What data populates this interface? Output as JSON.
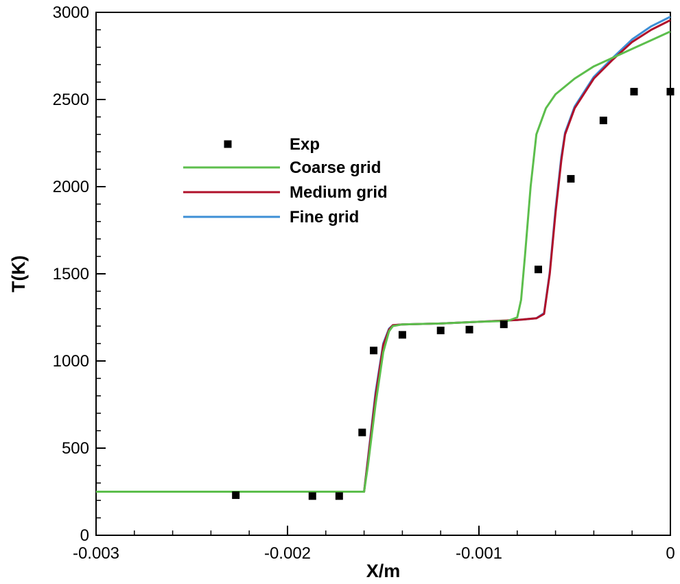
{
  "chart_data": {
    "type": "line",
    "title": "",
    "xlabel": "X/m",
    "ylabel": "T(K)",
    "xlim": [
      -0.003,
      0
    ],
    "ylim": [
      0,
      3000
    ],
    "x_ticks": [
      -0.003,
      -0.002,
      -0.001,
      0
    ],
    "x_tick_labels": [
      "-0.003",
      "-0.002",
      "-0.001",
      "0"
    ],
    "y_ticks": [
      0,
      500,
      1000,
      1500,
      2000,
      2500,
      3000
    ],
    "y_tick_labels": [
      "0",
      "500",
      "1000",
      "1500",
      "2000",
      "2500",
      "3000"
    ],
    "grid": false,
    "legend_position": "upper-left-center",
    "series": [
      {
        "name": "Exp",
        "kind": "scatter",
        "color": "#000000",
        "x": [
          -0.00227,
          -0.00187,
          -0.00173,
          -0.00161,
          -0.00155,
          -0.0014,
          -0.0012,
          -0.00105,
          -0.00087,
          -0.00069,
          -0.00052,
          -0.00035,
          -0.00019,
          0.0
        ],
        "y": [
          230,
          225,
          225,
          590,
          1060,
          1150,
          1175,
          1180,
          1210,
          1525,
          2045,
          2380,
          2545,
          2545
        ]
      },
      {
        "name": "Coarse grid",
        "kind": "line",
        "color": "#5cbe4c",
        "x": [
          -0.003,
          -0.0016,
          -0.00158,
          -0.00154,
          -0.0015,
          -0.00147,
          -0.00145,
          -0.0014,
          -0.0012,
          -0.001,
          -0.00085,
          -0.0008,
          -0.00078,
          -0.00076,
          -0.00073,
          -0.0007,
          -0.00065,
          -0.0006,
          -0.0005,
          -0.0004,
          -0.0003,
          -0.0002,
          -0.0001,
          0.0
        ],
        "y": [
          250,
          250,
          400,
          750,
          1050,
          1170,
          1200,
          1210,
          1215,
          1225,
          1230,
          1250,
          1350,
          1600,
          2000,
          2300,
          2450,
          2530,
          2620,
          2690,
          2740,
          2790,
          2840,
          2890
        ]
      },
      {
        "name": "Medium grid",
        "kind": "line",
        "color": "#b0102a",
        "x": [
          -0.003,
          -0.0016,
          -0.00158,
          -0.00154,
          -0.0015,
          -0.00147,
          -0.00145,
          -0.0014,
          -0.0012,
          -0.001,
          -0.0008,
          -0.0007,
          -0.00066,
          -0.00063,
          -0.0006,
          -0.00057,
          -0.00055,
          -0.0005,
          -0.0004,
          -0.0003,
          -0.0002,
          -0.0001,
          0.0
        ],
        "y": [
          250,
          250,
          430,
          800,
          1090,
          1180,
          1205,
          1210,
          1215,
          1225,
          1235,
          1245,
          1270,
          1500,
          1850,
          2150,
          2300,
          2450,
          2620,
          2730,
          2830,
          2900,
          2955
        ]
      },
      {
        "name": "Fine grid",
        "kind": "line",
        "color": "#3d8fd6",
        "x": [
          -0.003,
          -0.0016,
          -0.00158,
          -0.00154,
          -0.0015,
          -0.00147,
          -0.00145,
          -0.0014,
          -0.0012,
          -0.001,
          -0.0008,
          -0.0007,
          -0.00066,
          -0.00063,
          -0.0006,
          -0.00057,
          -0.00055,
          -0.0005,
          -0.0004,
          -0.0003,
          -0.0002,
          -0.0001,
          0.0
        ],
        "y": [
          250,
          250,
          440,
          820,
          1100,
          1185,
          1205,
          1210,
          1215,
          1225,
          1235,
          1245,
          1275,
          1510,
          1870,
          2170,
          2310,
          2460,
          2630,
          2740,
          2845,
          2920,
          2975
        ]
      }
    ]
  }
}
